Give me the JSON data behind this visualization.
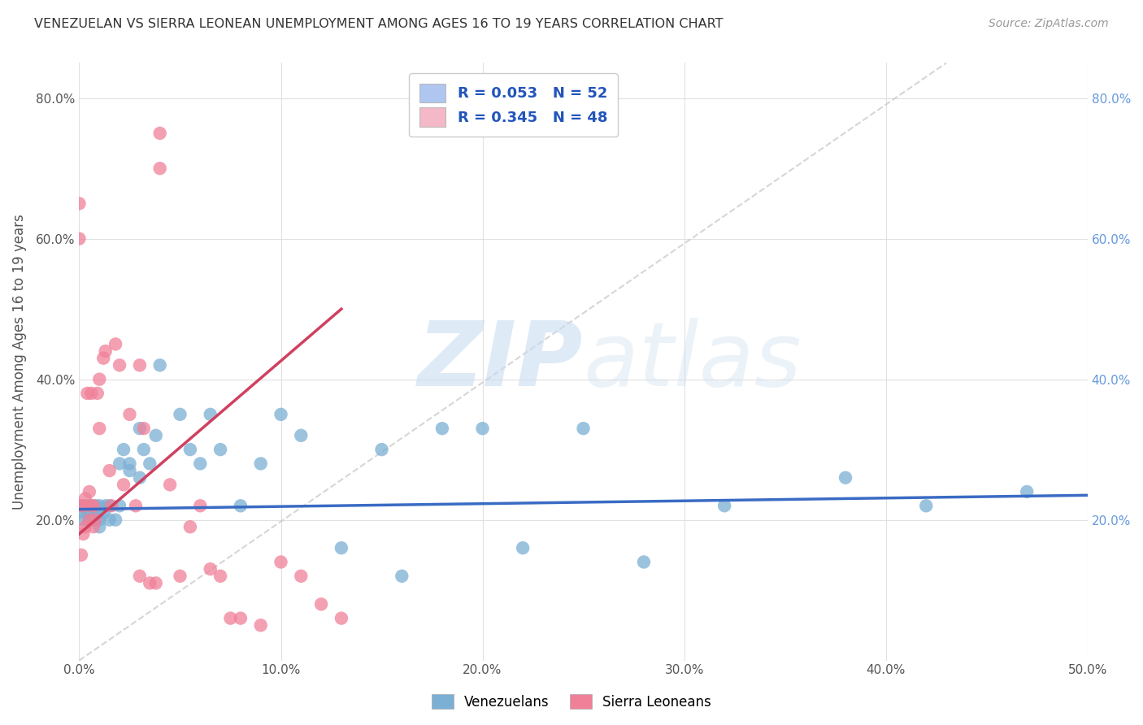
{
  "title": "VENEZUELAN VS SIERRA LEONEAN UNEMPLOYMENT AMONG AGES 16 TO 19 YEARS CORRELATION CHART",
  "source": "Source: ZipAtlas.com",
  "ylabel": "Unemployment Among Ages 16 to 19 years",
  "xlim": [
    0.0,
    0.5
  ],
  "ylim": [
    0.0,
    0.85
  ],
  "xticks": [
    0.0,
    0.1,
    0.2,
    0.3,
    0.4,
    0.5
  ],
  "yticks": [
    0.0,
    0.2,
    0.4,
    0.6,
    0.8
  ],
  "xtick_labels": [
    "0.0%",
    "10.0%",
    "20.0%",
    "30.0%",
    "40.0%",
    "50.0%"
  ],
  "ytick_labels_left": [
    "",
    "20.0%",
    "40.0%",
    "60.0%",
    "80.0%"
  ],
  "ytick_labels_right": [
    "",
    "20.0%",
    "40.0%",
    "60.0%",
    "80.0%"
  ],
  "legend_r_entries": [
    {
      "label_r": "R = 0.053",
      "label_n": "N = 52",
      "color": "#aec6f0"
    },
    {
      "label_r": "R = 0.345",
      "label_n": "N = 48",
      "color": "#f4b8c8"
    }
  ],
  "watermark_zip": "ZIP",
  "watermark_atlas": "atlas",
  "venezuelan_color": "#7bafd4",
  "sierra_leonean_color": "#f08098",
  "trend_venezuelan_color": "#3a6bc4",
  "trend_sierra_leonean_color": "#d04060",
  "diagonal_color": "#cccccc",
  "background_color": "#ffffff",
  "grid_color": "#e0e0e0",
  "venezuelan_x": [
    0.0,
    0.0,
    0.002,
    0.003,
    0.004,
    0.005,
    0.005,
    0.006,
    0.007,
    0.008,
    0.008,
    0.009,
    0.01,
    0.01,
    0.01,
    0.012,
    0.013,
    0.015,
    0.015,
    0.018,
    0.02,
    0.02,
    0.022,
    0.025,
    0.025,
    0.03,
    0.03,
    0.032,
    0.035,
    0.038,
    0.04,
    0.05,
    0.055,
    0.06,
    0.065,
    0.07,
    0.08,
    0.09,
    0.1,
    0.11,
    0.13,
    0.15,
    0.16,
    0.18,
    0.2,
    0.22,
    0.25,
    0.28,
    0.32,
    0.38,
    0.42,
    0.47
  ],
  "venezuelan_y": [
    0.22,
    0.21,
    0.2,
    0.22,
    0.21,
    0.22,
    0.2,
    0.21,
    0.2,
    0.22,
    0.2,
    0.21,
    0.22,
    0.2,
    0.19,
    0.21,
    0.22,
    0.2,
    0.22,
    0.2,
    0.22,
    0.28,
    0.3,
    0.28,
    0.27,
    0.33,
    0.26,
    0.3,
    0.28,
    0.32,
    0.42,
    0.35,
    0.3,
    0.28,
    0.35,
    0.3,
    0.22,
    0.28,
    0.35,
    0.32,
    0.16,
    0.3,
    0.12,
    0.33,
    0.33,
    0.16,
    0.33,
    0.14,
    0.22,
    0.26,
    0.22,
    0.24
  ],
  "sierra_leonean_x": [
    0.0,
    0.0,
    0.001,
    0.001,
    0.002,
    0.002,
    0.003,
    0.003,
    0.004,
    0.005,
    0.005,
    0.006,
    0.006,
    0.007,
    0.007,
    0.008,
    0.009,
    0.01,
    0.01,
    0.012,
    0.013,
    0.015,
    0.016,
    0.018,
    0.02,
    0.022,
    0.025,
    0.028,
    0.03,
    0.03,
    0.032,
    0.035,
    0.038,
    0.04,
    0.04,
    0.045,
    0.05,
    0.055,
    0.06,
    0.065,
    0.07,
    0.075,
    0.08,
    0.09,
    0.1,
    0.11,
    0.12,
    0.13
  ],
  "sierra_leonean_y": [
    0.65,
    0.6,
    0.22,
    0.15,
    0.22,
    0.18,
    0.23,
    0.19,
    0.38,
    0.24,
    0.2,
    0.22,
    0.38,
    0.22,
    0.19,
    0.2,
    0.38,
    0.4,
    0.33,
    0.43,
    0.44,
    0.27,
    0.22,
    0.45,
    0.42,
    0.25,
    0.35,
    0.22,
    0.12,
    0.42,
    0.33,
    0.11,
    0.11,
    0.7,
    0.75,
    0.25,
    0.12,
    0.19,
    0.22,
    0.13,
    0.12,
    0.06,
    0.06,
    0.05,
    0.14,
    0.12,
    0.08,
    0.06
  ],
  "trend_ven_x0": 0.0,
  "trend_ven_x1": 0.5,
  "trend_ven_y0": 0.215,
  "trend_ven_y1": 0.235,
  "trend_sl_x0": 0.0,
  "trend_sl_x1": 0.13,
  "trend_sl_y0": 0.18,
  "trend_sl_y1": 0.5
}
